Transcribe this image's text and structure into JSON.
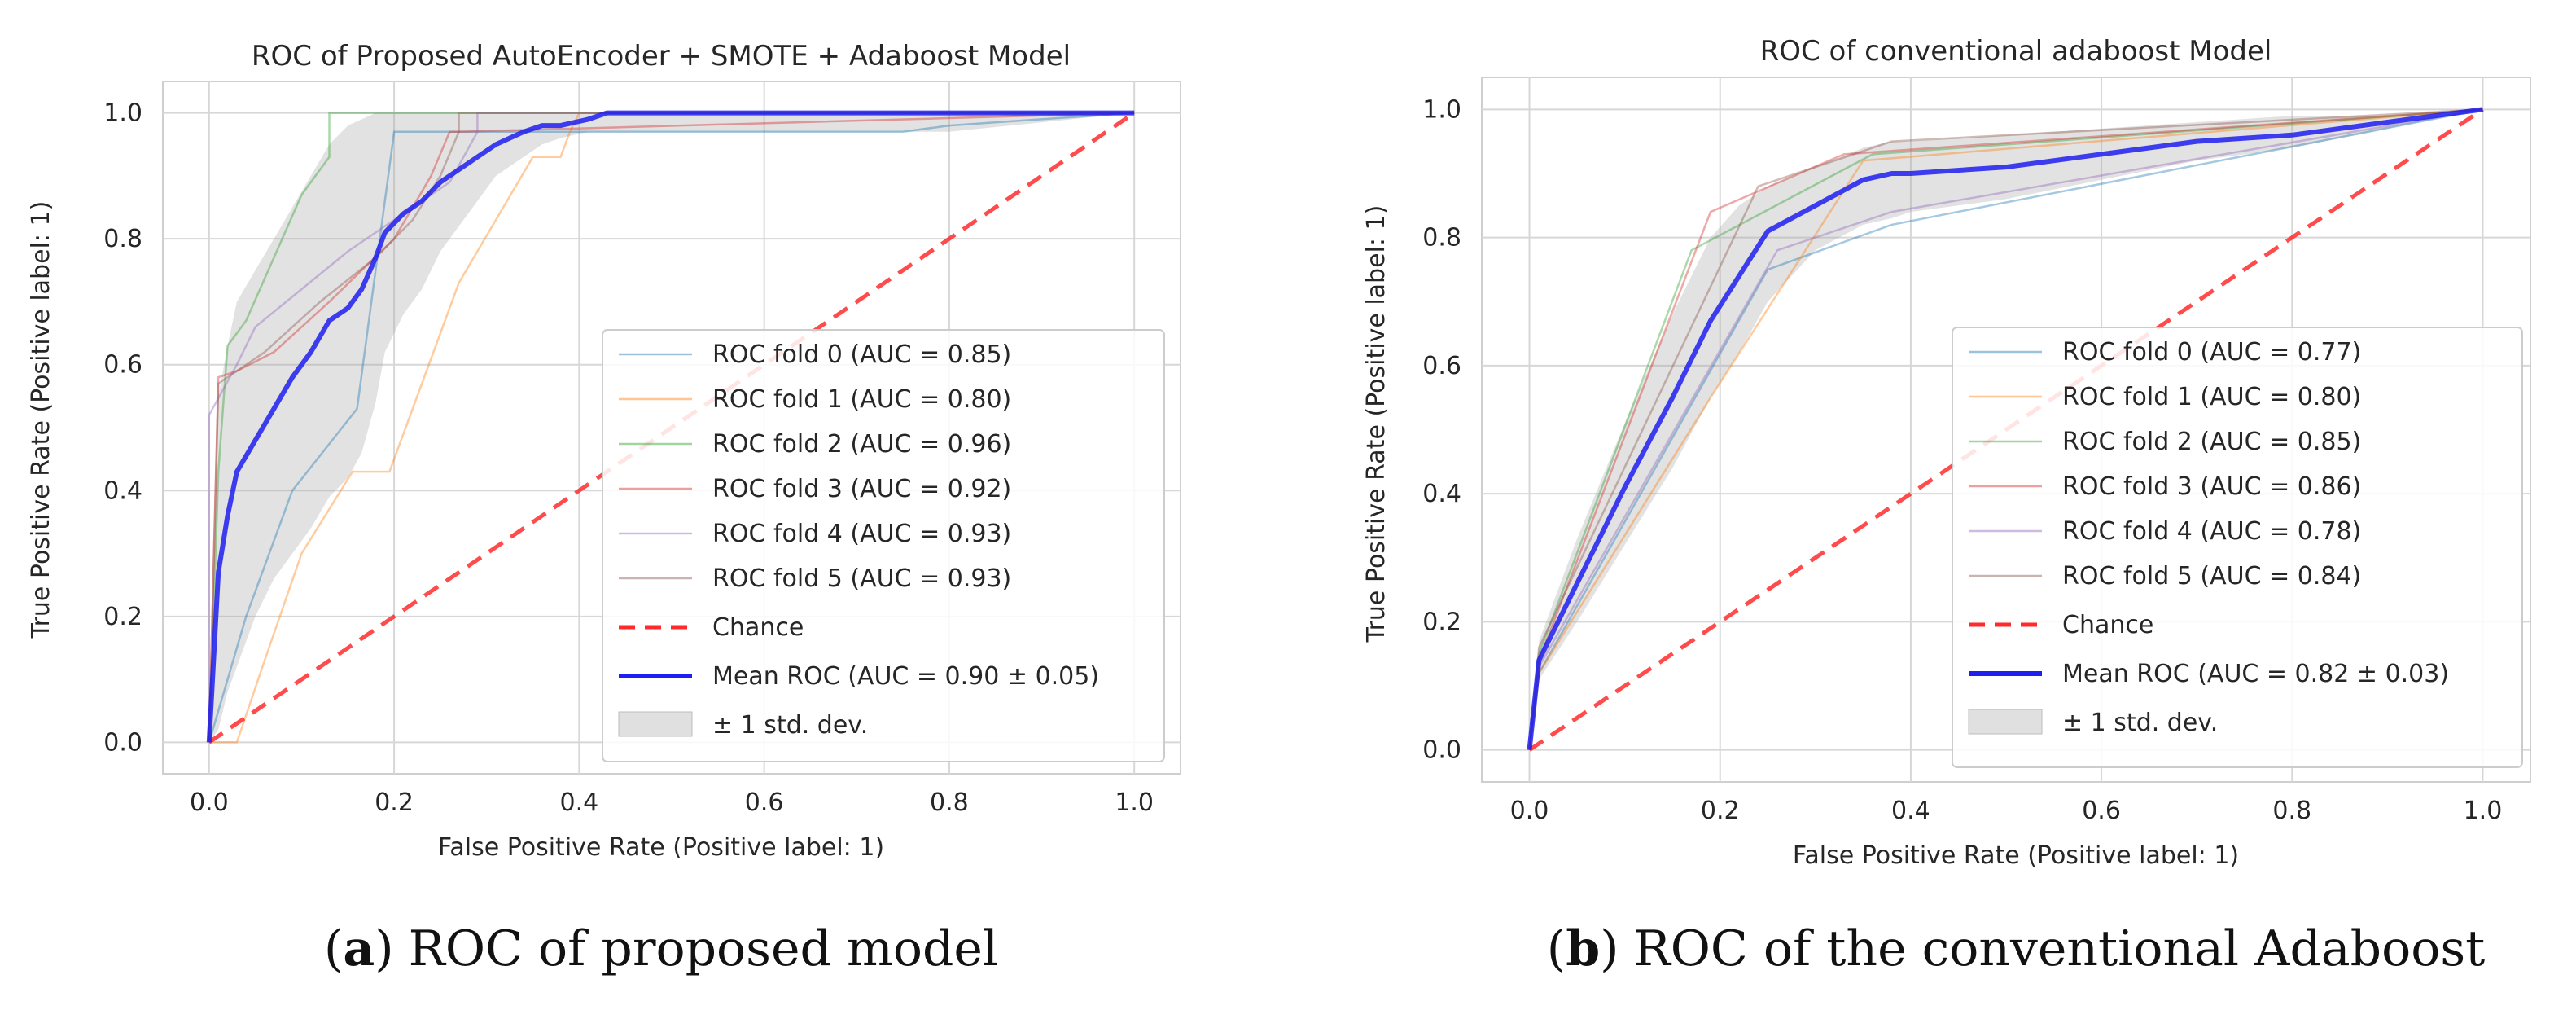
{
  "colors": {
    "background": "#ffffff",
    "grid": "#d7d7d7",
    "frame": "#cfcfcf",
    "band": "#a6a6a6",
    "mean": "#1f1ff0",
    "chance": "#ff2b2b"
  },
  "captions": [
    {
      "tag": "a",
      "open": "(",
      "close": ")",
      "text": "ROC of proposed model"
    },
    {
      "tag": "b",
      "open": "(",
      "close": ")",
      "text": "ROC of the conventional Adaboost"
    }
  ],
  "chart_data": [
    {
      "type": "line",
      "title": "ROC of Proposed AutoEncoder + SMOTE + Adaboost Model",
      "xlabel": "False Positive Rate (Positive label: 1)",
      "ylabel": "True Positive Rate (Positive label: 1)",
      "xlim": [
        -0.05,
        1.05
      ],
      "ylim": [
        -0.05,
        1.05
      ],
      "xticks": [
        0.0,
        0.2,
        0.4,
        0.6,
        0.8,
        1.0
      ],
      "yticks": [
        0.0,
        0.2,
        0.4,
        0.6,
        0.8,
        1.0
      ],
      "tick_labels": [
        "0.0",
        "0.2",
        "0.4",
        "0.6",
        "0.8",
        "1.0"
      ],
      "grid": true,
      "legend_position": "lower-right",
      "series": [
        {
          "name": "ROC fold 0 (AUC = 0.85)",
          "color": "#1f77b4",
          "x": [
            0,
            0.04,
            0.09,
            0.16,
            0.2,
            0.25,
            0.75,
            0.8,
            1.0
          ],
          "y": [
            0,
            0.2,
            0.4,
            0.53,
            0.97,
            0.97,
            0.97,
            0.98,
            1.0
          ]
        },
        {
          "name": "ROC fold 1 (AUC = 0.80)",
          "color": "#ff7f0e",
          "x": [
            0,
            0.03,
            0.06,
            0.1,
            0.155,
            0.195,
            0.23,
            0.27,
            0.35,
            0.38,
            0.39,
            0.4,
            1.0
          ],
          "y": [
            0,
            0,
            0.13,
            0.3,
            0.43,
            0.43,
            0.57,
            0.73,
            0.93,
            0.93,
            0.97,
            1.0,
            1.0
          ]
        },
        {
          "name": "ROC fold 2 (AUC = 0.96)",
          "color": "#2ca02c",
          "x": [
            0,
            0.01,
            0.02,
            0.04,
            0.07,
            0.1,
            0.13,
            0.13,
            1.0
          ],
          "y": [
            0,
            0.43,
            0.63,
            0.67,
            0.77,
            0.87,
            0.93,
            1.0,
            1.0
          ]
        },
        {
          "name": "ROC fold 3 (AUC = 0.92)",
          "color": "#d62728",
          "x": [
            0,
            0.01,
            0.03,
            0.07,
            0.13,
            0.2,
            0.24,
            0.26,
            0.27,
            1.0
          ],
          "y": [
            0,
            0.58,
            0.59,
            0.62,
            0.7,
            0.8,
            0.9,
            0.97,
            0.97,
            1.0
          ]
        },
        {
          "name": "ROC fold 4 (AUC = 0.93)",
          "color": "#9467bd",
          "x": [
            0,
            0.0,
            0.03,
            0.05,
            0.1,
            0.15,
            0.2,
            0.26,
            0.29,
            0.29,
            1.0
          ],
          "y": [
            0,
            0.52,
            0.6,
            0.66,
            0.72,
            0.78,
            0.83,
            0.89,
            0.97,
            1.0,
            1.0
          ]
        },
        {
          "name": "ROC fold 5 (AUC = 0.93)",
          "color": "#8c564b",
          "x": [
            0,
            0.01,
            0.03,
            0.06,
            0.12,
            0.18,
            0.22,
            0.25,
            0.27,
            0.27,
            1.0
          ],
          "y": [
            0,
            0.57,
            0.59,
            0.62,
            0.7,
            0.77,
            0.83,
            0.9,
            0.97,
            1.0,
            1.0
          ]
        }
      ],
      "mean": {
        "name": "Mean ROC (AUC = 0.90 ± 0.05)",
        "x": [
          0,
          0.01,
          0.02,
          0.03,
          0.05,
          0.07,
          0.09,
          0.11,
          0.13,
          0.15,
          0.165,
          0.18,
          0.19,
          0.21,
          0.23,
          0.25,
          0.27,
          0.29,
          0.31,
          0.34,
          0.36,
          0.38,
          0.41,
          0.43,
          0.6,
          0.8,
          1.0
        ],
        "y": [
          0,
          0.27,
          0.36,
          0.43,
          0.48,
          0.53,
          0.58,
          0.62,
          0.67,
          0.69,
          0.72,
          0.77,
          0.81,
          0.84,
          0.86,
          0.89,
          0.91,
          0.93,
          0.95,
          0.97,
          0.98,
          0.98,
          0.99,
          1.0,
          1.0,
          1.0,
          1.0
        ]
      },
      "std_band": {
        "name": "± 1 std. dev.",
        "x": [
          0,
          0.01,
          0.02,
          0.03,
          0.05,
          0.07,
          0.09,
          0.11,
          0.13,
          0.15,
          0.165,
          0.18,
          0.19,
          0.21,
          0.23,
          0.25,
          0.27,
          0.29,
          0.31,
          0.34,
          0.36,
          0.38,
          0.41,
          0.43,
          0.6,
          0.8,
          1.0
        ],
        "upper": [
          0,
          0.55,
          0.63,
          0.7,
          0.75,
          0.8,
          0.85,
          0.9,
          0.95,
          0.98,
          0.99,
          1.0,
          1.0,
          1.0,
          1.0,
          1.0,
          1.0,
          1.0,
          1.0,
          1.0,
          1.0,
          1.0,
          1.0,
          1.0,
          1.0,
          1.0,
          1.0
        ],
        "lower": [
          0,
          0.02,
          0.08,
          0.12,
          0.2,
          0.26,
          0.3,
          0.34,
          0.39,
          0.42,
          0.46,
          0.54,
          0.62,
          0.68,
          0.72,
          0.78,
          0.82,
          0.86,
          0.9,
          0.93,
          0.95,
          0.96,
          0.97,
          0.97,
          0.97,
          0.97,
          1.0
        ]
      },
      "chance": {
        "name": "Chance",
        "x": [
          0,
          1
        ],
        "y": [
          0,
          1
        ]
      }
    },
    {
      "type": "line",
      "title": "ROC of conventional adaboost Model",
      "xlabel": "False Positive Rate (Positive label: 1)",
      "ylabel": "True Positive Rate (Positive label: 1)",
      "xlim": [
        -0.05,
        1.05
      ],
      "ylim": [
        -0.05,
        1.05
      ],
      "xticks": [
        0.0,
        0.2,
        0.4,
        0.6,
        0.8,
        1.0
      ],
      "yticks": [
        0.0,
        0.2,
        0.4,
        0.6,
        0.8,
        1.0
      ],
      "tick_labels": [
        "0.0",
        "0.2",
        "0.4",
        "0.6",
        "0.8",
        "1.0"
      ],
      "grid": true,
      "legend_position": "lower-right",
      "series": [
        {
          "name": "ROC fold 0 (AUC = 0.77)",
          "color": "#1f77b4",
          "x": [
            0,
            0.01,
            0.25,
            0.38,
            1.0
          ],
          "y": [
            0,
            0.12,
            0.75,
            0.82,
            1.0
          ]
        },
        {
          "name": "ROC fold 1 (AUC = 0.80)",
          "color": "#ff7f0e",
          "x": [
            0,
            0.01,
            0.19,
            0.35,
            1.0
          ],
          "y": [
            0,
            0.12,
            0.55,
            0.92,
            1.0
          ]
        },
        {
          "name": "ROC fold 2 (AUC = 0.85)",
          "color": "#2ca02c",
          "x": [
            0,
            0.01,
            0.17,
            0.36,
            1.0
          ],
          "y": [
            0,
            0.15,
            0.78,
            0.93,
            1.0
          ]
        },
        {
          "name": "ROC fold 3 (AUC = 0.86)",
          "color": "#d62728",
          "x": [
            0,
            0.01,
            0.19,
            0.33,
            1.0
          ],
          "y": [
            0,
            0.14,
            0.84,
            0.93,
            1.0
          ]
        },
        {
          "name": "ROC fold 4 (AUC = 0.78)",
          "color": "#9467bd",
          "x": [
            0,
            0.01,
            0.26,
            0.38,
            1.0
          ],
          "y": [
            0,
            0.13,
            0.78,
            0.84,
            1.0
          ]
        },
        {
          "name": "ROC fold 5 (AUC = 0.84)",
          "color": "#8c564b",
          "x": [
            0,
            0.01,
            0.24,
            0.38,
            1.0
          ],
          "y": [
            0,
            0.16,
            0.88,
            0.95,
            1.0
          ]
        }
      ],
      "mean": {
        "name": "Mean ROC (AUC = 0.82 ± 0.03)",
        "x": [
          0,
          0.01,
          0.05,
          0.1,
          0.15,
          0.19,
          0.22,
          0.25,
          0.3,
          0.35,
          0.38,
          0.4,
          0.5,
          0.6,
          0.7,
          0.8,
          0.9,
          1.0
        ],
        "y": [
          0,
          0.14,
          0.26,
          0.41,
          0.55,
          0.67,
          0.74,
          0.81,
          0.85,
          0.89,
          0.9,
          0.9,
          0.91,
          0.93,
          0.95,
          0.96,
          0.98,
          1.0
        ]
      },
      "std_band": {
        "name": "± 1 std. dev.",
        "x": [
          0,
          0.01,
          0.05,
          0.1,
          0.15,
          0.19,
          0.22,
          0.25,
          0.3,
          0.35,
          0.38,
          0.4,
          0.5,
          0.6,
          0.7,
          0.8,
          0.9,
          1.0
        ],
        "upper": [
          0,
          0.17,
          0.33,
          0.51,
          0.68,
          0.8,
          0.85,
          0.88,
          0.91,
          0.94,
          0.95,
          0.95,
          0.96,
          0.97,
          0.98,
          0.99,
          0.99,
          1.0
        ],
        "lower": [
          0,
          0.11,
          0.2,
          0.32,
          0.44,
          0.55,
          0.62,
          0.7,
          0.78,
          0.82,
          0.83,
          0.84,
          0.86,
          0.89,
          0.92,
          0.94,
          0.97,
          1.0
        ]
      },
      "chance": {
        "name": "Chance",
        "x": [
          0,
          1
        ],
        "y": [
          0,
          1
        ]
      }
    }
  ]
}
